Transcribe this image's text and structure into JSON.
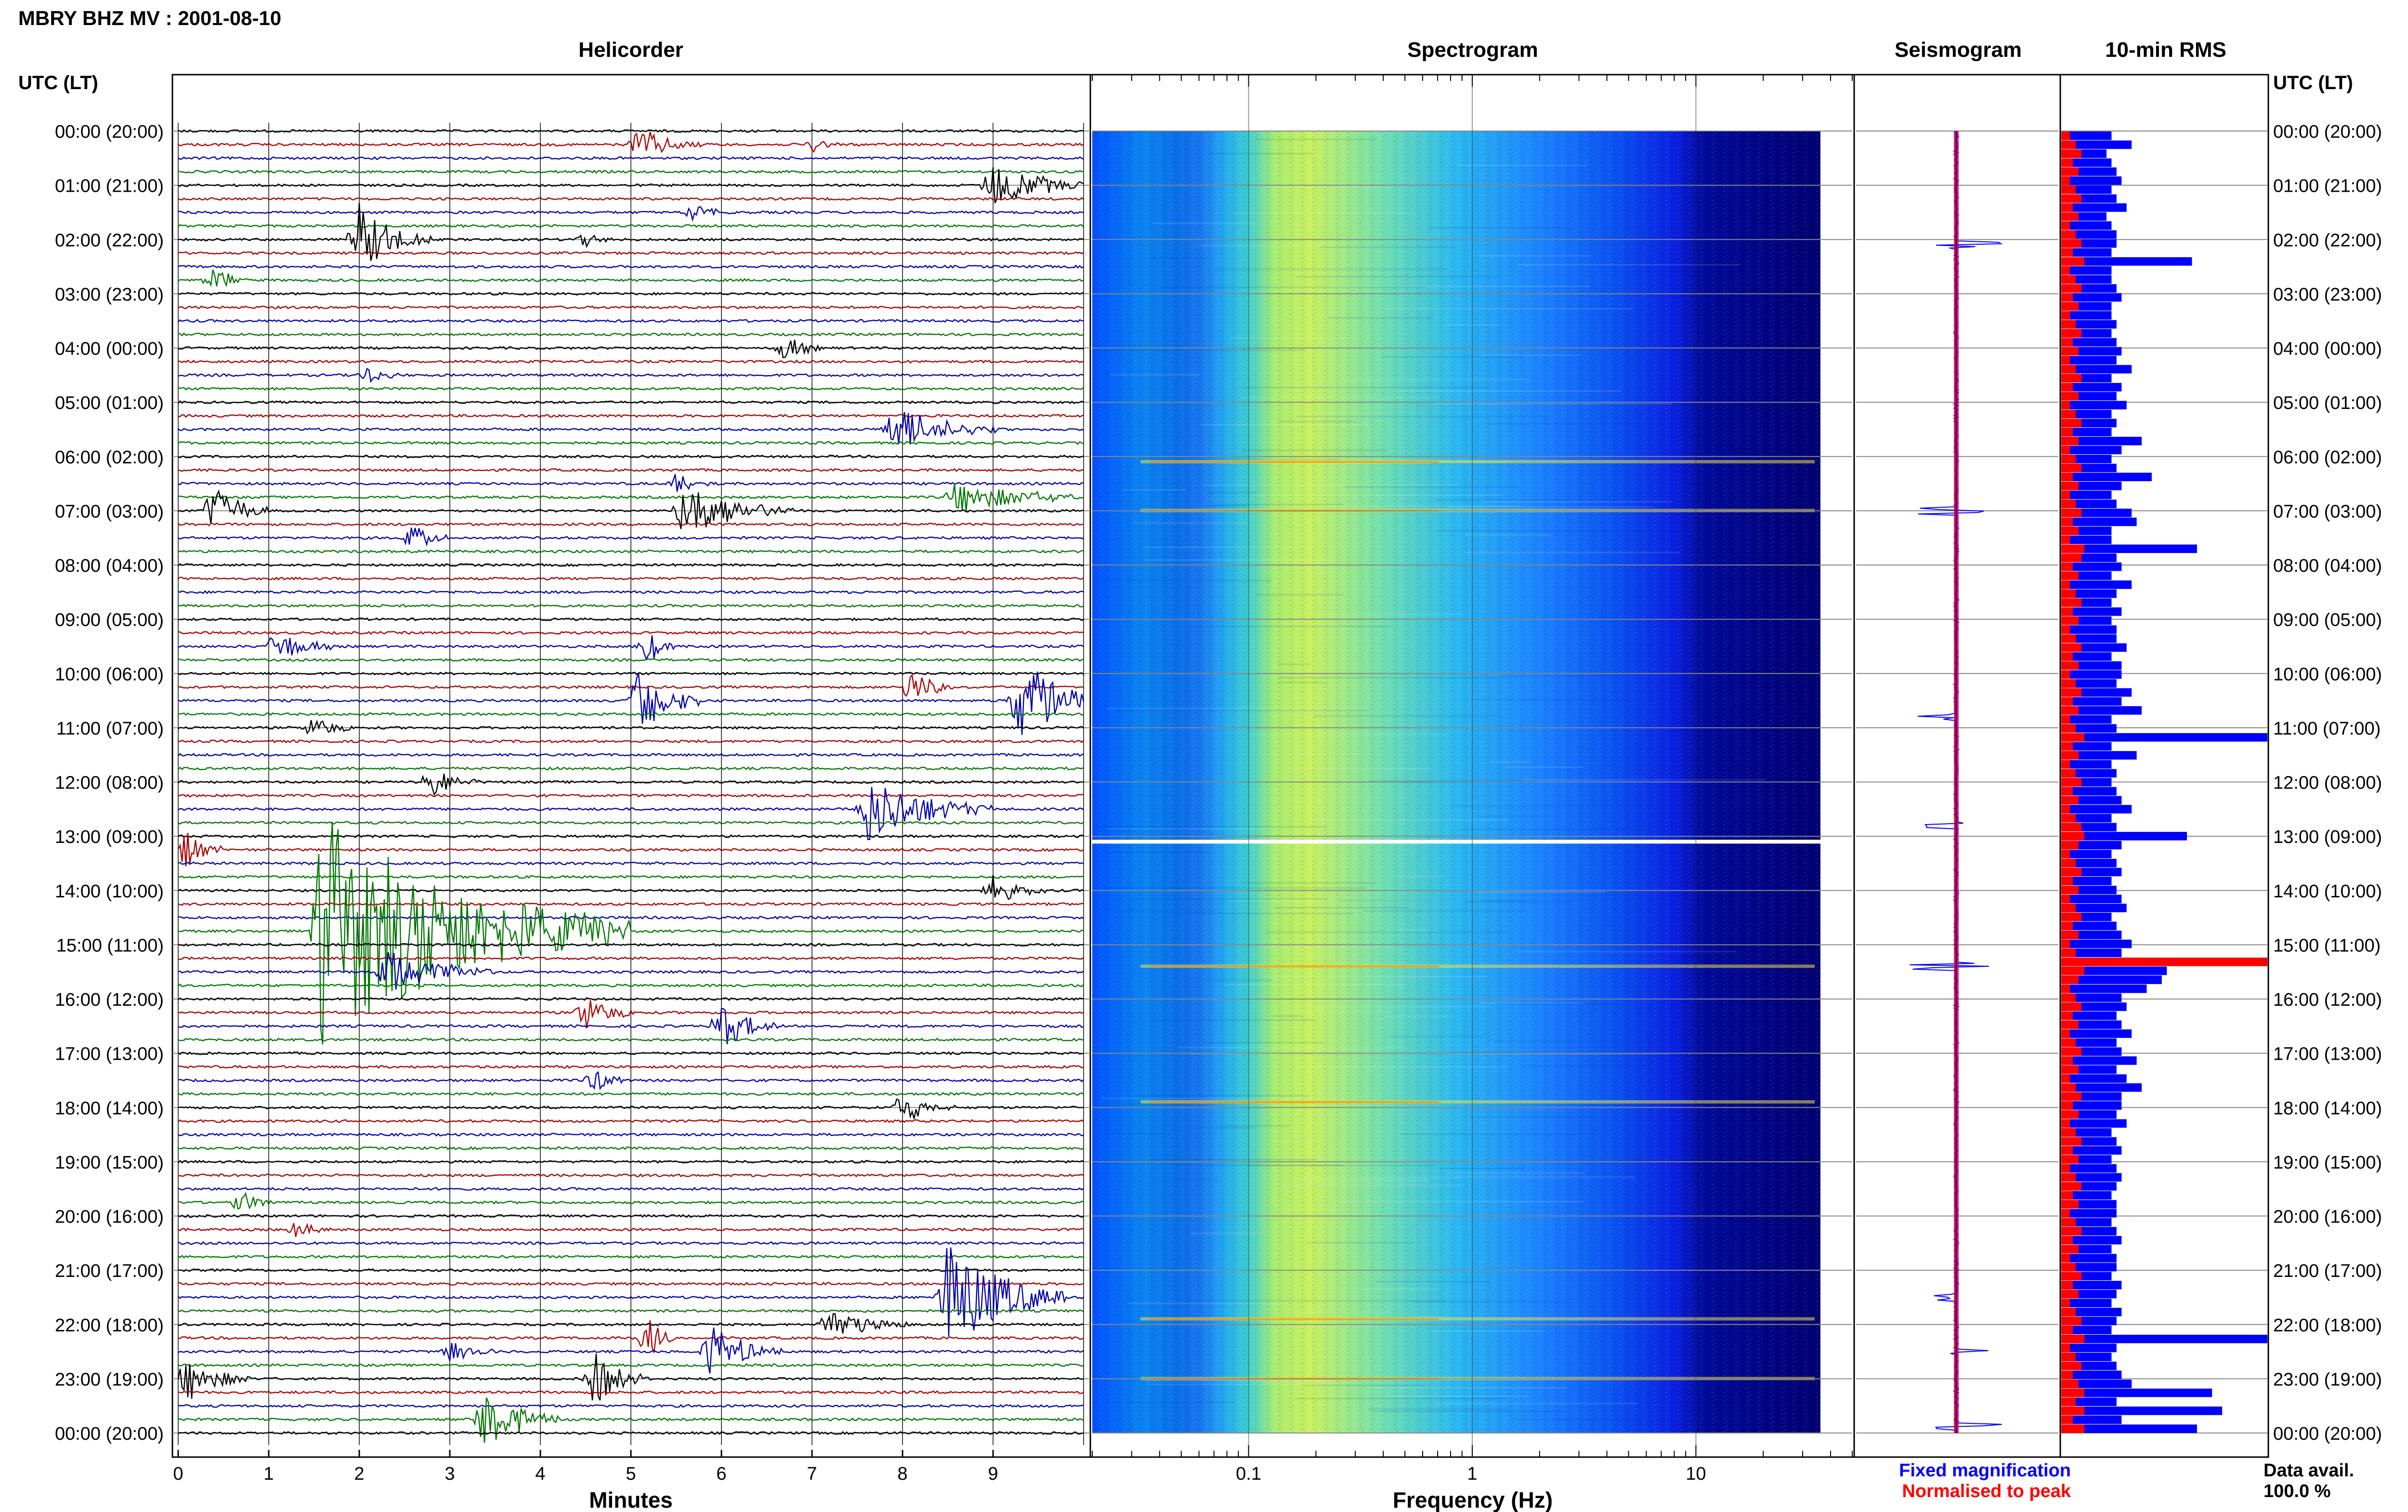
{
  "header": {
    "station_title": "MBRY BHZ MV : 2001-08-10"
  },
  "panels": {
    "helicorder_title": "Helicorder",
    "spectrogram_title": "Spectrogram",
    "seismogram_title": "Seismogram",
    "rms_title": "10-min RMS"
  },
  "axes": {
    "left_time_label": "UTC (LT)",
    "right_time_label": "UTC (LT)",
    "helicorder_xlabel": "Minutes",
    "spectrogram_xlabel": "Frequency (Hz)"
  },
  "legend": {
    "fixed_label": "Fixed magnification",
    "normalised_label": "Normalised to peak",
    "fixed_color": "#0000ff",
    "normalised_color": "#ff0000"
  },
  "data_avail": {
    "label": "Data avail.",
    "value": "100.0 %"
  },
  "chart_data": {
    "type": "heatmap",
    "time_ticks": [
      "00:00 (20:00)",
      "01:00 (21:00)",
      "02:00 (22:00)",
      "03:00 (23:00)",
      "04:00 (00:00)",
      "05:00 (01:00)",
      "06:00 (02:00)",
      "07:00 (03:00)",
      "08:00 (04:00)",
      "09:00 (05:00)",
      "10:00 (06:00)",
      "11:00 (07:00)",
      "12:00 (08:00)",
      "13:00 (09:00)",
      "14:00 (10:00)",
      "15:00 (11:00)",
      "16:00 (12:00)",
      "17:00 (13:00)",
      "18:00 (14:00)",
      "19:00 (15:00)",
      "20:00 (16:00)",
      "21:00 (17:00)",
      "22:00 (18:00)",
      "23:00 (19:00)",
      "00:00 (20:00)"
    ],
    "helicorder": {
      "x_ticks": [
        "0",
        "1",
        "2",
        "3",
        "4",
        "5",
        "6",
        "7",
        "8",
        "9"
      ],
      "xlim": [
        0,
        10
      ],
      "trace_colors": [
        "#000000",
        "#aa0000",
        "#0000aa",
        "#007700"
      ],
      "events": [
        {
          "hour": 0.2,
          "minute": 5.1,
          "amp": 0.6,
          "dur": 0.7
        },
        {
          "hour": 0.33,
          "minute": 7.0,
          "amp": 0.3,
          "dur": 0.3
        },
        {
          "hour": 1.0,
          "minute": 9.0,
          "amp": 0.8,
          "dur": 1.1
        },
        {
          "hour": 1.5,
          "minute": 5.7,
          "amp": 0.3,
          "dur": 0.4
        },
        {
          "hour": 2.0,
          "minute": 2.0,
          "amp": 1.2,
          "dur": 0.8
        },
        {
          "hour": 1.95,
          "minute": 4.5,
          "amp": 0.3,
          "dur": 0.3
        },
        {
          "hour": 2.8,
          "minute": 0.4,
          "amp": 0.4,
          "dur": 0.5
        },
        {
          "hour": 3.9,
          "minute": 6.7,
          "amp": 0.5,
          "dur": 0.4
        },
        {
          "hour": 4.6,
          "minute": 2.1,
          "amp": 0.3,
          "dur": 0.4
        },
        {
          "hour": 5.5,
          "minute": 7.9,
          "amp": 0.8,
          "dur": 1.2
        },
        {
          "hour": 6.5,
          "minute": 5.5,
          "amp": 0.4,
          "dur": 0.4
        },
        {
          "hour": 6.8,
          "minute": 8.6,
          "amp": 0.6,
          "dur": 1.4
        },
        {
          "hour": 7.0,
          "minute": 0.4,
          "amp": 0.9,
          "dur": 0.6
        },
        {
          "hour": 6.9,
          "minute": 5.6,
          "amp": 1.0,
          "dur": 1.2
        },
        {
          "hour": 7.6,
          "minute": 2.6,
          "amp": 0.5,
          "dur": 0.4
        },
        {
          "hour": 9.4,
          "minute": 1.1,
          "amp": 0.6,
          "dur": 0.6
        },
        {
          "hour": 9.6,
          "minute": 5.2,
          "amp": 0.6,
          "dur": 0.3
        },
        {
          "hour": 10.2,
          "minute": 8.1,
          "amp": 0.6,
          "dur": 0.5
        },
        {
          "hour": 10.6,
          "minute": 5.1,
          "amp": 1.2,
          "dur": 0.7
        },
        {
          "hour": 10.6,
          "minute": 9.3,
          "amp": 1.6,
          "dur": 0.9
        },
        {
          "hour": 11.0,
          "minute": 1.5,
          "amp": 0.4,
          "dur": 0.5
        },
        {
          "hour": 11.9,
          "minute": 2.8,
          "amp": 0.5,
          "dur": 0.6
        },
        {
          "hour": 12.6,
          "minute": 7.6,
          "amp": 1.2,
          "dur": 1.4
        },
        {
          "hour": 13.3,
          "minute": 0.1,
          "amp": 0.7,
          "dur": 0.4
        },
        {
          "hour": 14.0,
          "minute": 9.0,
          "amp": 0.5,
          "dur": 0.6
        },
        {
          "hour": 14.8,
          "minute": 1.6,
          "amp": 4.0,
          "dur": 3.4
        },
        {
          "hour": 15.5,
          "minute": 2.3,
          "amp": 0.8,
          "dur": 1.2
        },
        {
          "hour": 16.2,
          "minute": 4.5,
          "amp": 0.6,
          "dur": 0.6
        },
        {
          "hour": 16.6,
          "minute": 6.0,
          "amp": 0.8,
          "dur": 0.7
        },
        {
          "hour": 17.5,
          "minute": 4.6,
          "amp": 0.4,
          "dur": 0.4
        },
        {
          "hour": 17.9,
          "minute": 8.0,
          "amp": 0.6,
          "dur": 0.6
        },
        {
          "hour": 19.7,
          "minute": 0.7,
          "amp": 0.4,
          "dur": 0.4
        },
        {
          "hour": 20.3,
          "minute": 1.3,
          "amp": 0.3,
          "dur": 0.4
        },
        {
          "hour": 21.6,
          "minute": 8.5,
          "amp": 2.0,
          "dur": 1.3
        },
        {
          "hour": 21.95,
          "minute": 7.2,
          "amp": 0.6,
          "dur": 0.9
        },
        {
          "hour": 22.2,
          "minute": 5.2,
          "amp": 0.8,
          "dur": 0.3
        },
        {
          "hour": 22.4,
          "minute": 5.9,
          "amp": 0.9,
          "dur": 0.8
        },
        {
          "hour": 22.5,
          "minute": 3.0,
          "amp": 0.4,
          "dur": 0.5
        },
        {
          "hour": 22.9,
          "minute": 4.6,
          "amp": 1.0,
          "dur": 0.6
        },
        {
          "hour": 23.0,
          "minute": 0.1,
          "amp": 0.8,
          "dur": 0.7
        },
        {
          "hour": 23.8,
          "minute": 3.4,
          "amp": 1.2,
          "dur": 0.8
        }
      ]
    },
    "spectrogram": {
      "x_ticks": [
        "0.1",
        "1",
        "10"
      ],
      "x_tick_values": [
        0.1,
        1,
        10
      ],
      "xlim": [
        0.02,
        50
      ],
      "max_freq_content": 30,
      "colormap": [
        "#000080",
        "#0000ff",
        "#0080ff",
        "#00c8ff",
        "#60e0a0",
        "#d8f040",
        "#ffd000",
        "#ff6000"
      ],
      "bright_band_hours": [
        6.1,
        7.0,
        15.4,
        17.9,
        21.9,
        23.0
      ],
      "gap_hour": 13.1
    },
    "rms_10min": {
      "values": [
        1.0,
        1.4,
        0.9,
        1.0,
        1.1,
        1.2,
        1.0,
        1.1,
        1.3,
        0.9,
        1.0,
        1.1,
        1.1,
        1.0,
        2.6,
        1.0,
        1.0,
        1.1,
        1.2,
        1.0,
        1.0,
        1.1,
        1.0,
        1.1,
        1.2,
        1.1,
        1.4,
        1.0,
        1.2,
        1.1,
        1.3,
        1.0,
        1.1,
        1.0,
        1.6,
        1.2,
        1.0,
        1.1,
        1.8,
        1.2,
        1.0,
        1.1,
        1.4,
        1.5,
        1.0,
        1.0,
        2.7,
        1.1,
        1.2,
        1.0,
        1.4,
        1.1,
        1.0,
        1.2,
        1.0,
        1.1,
        1.1,
        1.3,
        1.0,
        1.2,
        1.2,
        1.1,
        1.4,
        1.2,
        1.6,
        1.0,
        1.1,
        4.1,
        1.0,
        1.5,
        1.0,
        1.1,
        1.0,
        1.1,
        1.2,
        1.4,
        1.0,
        1.1,
        2.5,
        1.2,
        1.0,
        1.1,
        1.2,
        1.0,
        1.1,
        1.2,
        1.3,
        1.0,
        1.1,
        1.2,
        1.4,
        1.2,
        4.1,
        2.1,
        2.0,
        1.7,
        1.2,
        1.3,
        1.1,
        1.2,
        1.4,
        1.1,
        1.2,
        1.5,
        1.1,
        1.3,
        1.6,
        1.2,
        1.2,
        1.1,
        1.3,
        1.0,
        1.1,
        1.2,
        1.0,
        1.1,
        1.2,
        1.1,
        1.0,
        1.1,
        1.1,
        1.0,
        1.1,
        1.2,
        1.0,
        1.1,
        1.1,
        1.0,
        1.2,
        1.1,
        1.0,
        1.2,
        1.1,
        1.0,
        4.1,
        1.1,
        1.0,
        1.1,
        1.2,
        1.4,
        3.0,
        1.1,
        3.2,
        1.2,
        2.7
      ],
      "normalised_peak_index": 92,
      "xlim": [
        0,
        4.1
      ]
    },
    "seismogram": {
      "spike_hours": [
        2.1,
        7.0,
        10.8,
        12.8,
        15.4,
        21.5,
        22.5,
        23.9
      ]
    }
  }
}
